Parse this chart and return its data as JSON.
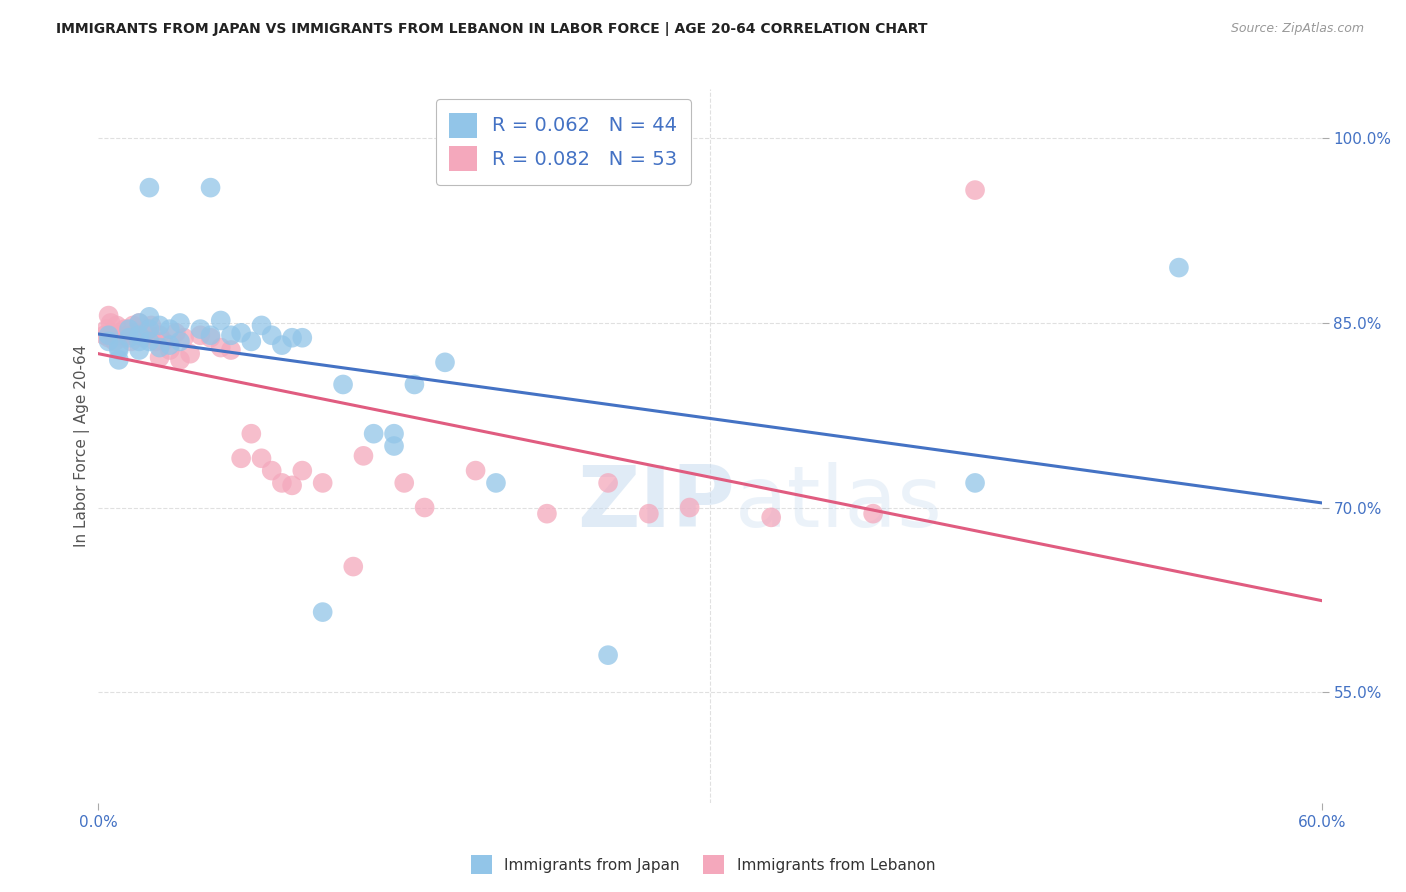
{
  "title": "IMMIGRANTS FROM JAPAN VS IMMIGRANTS FROM LEBANON IN LABOR FORCE | AGE 20-64 CORRELATION CHART",
  "source": "Source: ZipAtlas.com",
  "ylabel": "In Labor Force | Age 20-64",
  "xmin": 0.0,
  "xmax": 0.6,
  "ymin": 0.46,
  "ymax": 1.04,
  "japan_R": 0.062,
  "japan_N": 44,
  "lebanon_R": 0.082,
  "lebanon_N": 53,
  "japan_color": "#92C5E8",
  "lebanon_color": "#F4A8BC",
  "japan_line_color": "#4472C4",
  "lebanon_line_color": "#E05C80",
  "japan_x": [
    0.005,
    0.005,
    0.01,
    0.01,
    0.01,
    0.015,
    0.015,
    0.02,
    0.02,
    0.02,
    0.02,
    0.025,
    0.025,
    0.025,
    0.03,
    0.03,
    0.035,
    0.035,
    0.04,
    0.04,
    0.05,
    0.055,
    0.06,
    0.065,
    0.07,
    0.075,
    0.08,
    0.085,
    0.09,
    0.095,
    0.1,
    0.11,
    0.12,
    0.135,
    0.155,
    0.17,
    0.195,
    0.25,
    0.145,
    0.145,
    0.43,
    0.53,
    0.025,
    0.055
  ],
  "japan_y": [
    0.84,
    0.835,
    0.83,
    0.828,
    0.82,
    0.845,
    0.838,
    0.85,
    0.84,
    0.835,
    0.828,
    0.855,
    0.845,
    0.835,
    0.848,
    0.83,
    0.845,
    0.832,
    0.85,
    0.835,
    0.845,
    0.84,
    0.852,
    0.84,
    0.842,
    0.835,
    0.848,
    0.84,
    0.832,
    0.838,
    0.838,
    0.615,
    0.8,
    0.76,
    0.8,
    0.818,
    0.72,
    0.58,
    0.75,
    0.76,
    0.72,
    0.895,
    0.96,
    0.96
  ],
  "lebanon_x": [
    0.003,
    0.004,
    0.005,
    0.006,
    0.007,
    0.008,
    0.009,
    0.01,
    0.012,
    0.013,
    0.015,
    0.016,
    0.017,
    0.018,
    0.02,
    0.022,
    0.024,
    0.025,
    0.026,
    0.028,
    0.03,
    0.032,
    0.035,
    0.038,
    0.04,
    0.042,
    0.045,
    0.05,
    0.055,
    0.06,
    0.065,
    0.07,
    0.075,
    0.08,
    0.085,
    0.09,
    0.095,
    0.1,
    0.11,
    0.13,
    0.15,
    0.16,
    0.185,
    0.22,
    0.25,
    0.27,
    0.29,
    0.33,
    0.38,
    0.005,
    0.03,
    0.125,
    0.43
  ],
  "lebanon_y": [
    0.84,
    0.845,
    0.838,
    0.85,
    0.842,
    0.835,
    0.848,
    0.84,
    0.838,
    0.845,
    0.84,
    0.835,
    0.848,
    0.842,
    0.85,
    0.838,
    0.845,
    0.84,
    0.848,
    0.835,
    0.84,
    0.835,
    0.828,
    0.842,
    0.82,
    0.838,
    0.825,
    0.84,
    0.838,
    0.83,
    0.828,
    0.74,
    0.76,
    0.74,
    0.73,
    0.72,
    0.718,
    0.73,
    0.72,
    0.742,
    0.72,
    0.7,
    0.73,
    0.695,
    0.72,
    0.695,
    0.7,
    0.692,
    0.695,
    0.856,
    0.822,
    0.652,
    0.958
  ],
  "watermark_zip": "ZIP",
  "watermark_atlas": "atlas",
  "background_color": "#FFFFFF",
  "grid_color": "#E0E0E0",
  "ytick_positions": [
    0.55,
    0.7,
    0.85,
    1.0
  ],
  "ytick_labels": [
    "55.0%",
    "70.0%",
    "85.0%",
    "100.0%"
  ],
  "xtick_positions": [
    0.0,
    0.6
  ],
  "xtick_labels": [
    "0.0%",
    "60.0%"
  ]
}
